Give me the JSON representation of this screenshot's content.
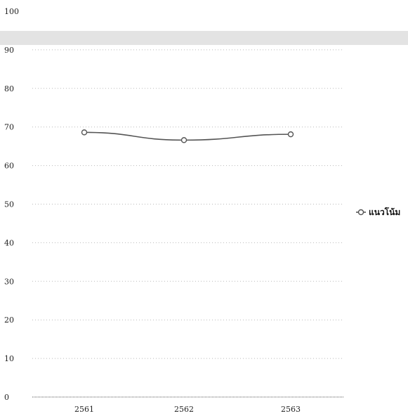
{
  "chart_data": {
    "type": "line",
    "categories": [
      "2561",
      "2562",
      "2563"
    ],
    "series": [
      {
        "name": "แนวโน้ม",
        "values": [
          68.6,
          66.6,
          68.1
        ],
        "color": "#555555"
      }
    ],
    "ylim": [
      0,
      100
    ],
    "yticks": [
      0,
      10,
      20,
      30,
      40,
      50,
      60,
      70,
      80,
      90,
      100
    ],
    "title": "",
    "xlabel": "",
    "ylabel": "",
    "grid": true,
    "legend": "right"
  }
}
